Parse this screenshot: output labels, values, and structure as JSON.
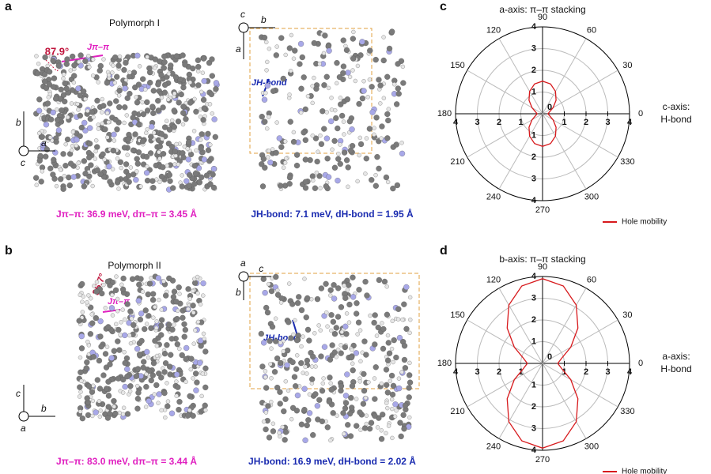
{
  "panel_labels": [
    "a",
    "b",
    "c",
    "d"
  ],
  "polymorph_1": {
    "title": "Polymorph I",
    "angle": "87.9°",
    "coupling_label": "Jπ–π",
    "axes": [
      "b",
      "a",
      "c"
    ],
    "caption": "Jπ–π: 36.9 meV, dπ–π = 3.45 Å"
  },
  "hbond_1": {
    "axes": [
      "a",
      "b",
      "c"
    ],
    "coupling_label": "JH-bond",
    "caption": "JH-bond: 7.1 meV, dH-bond = 1.95 Å"
  },
  "polymorph_2": {
    "title": "Polymorph II",
    "angle": "35.7°",
    "coupling_label": "Jπ–π",
    "axes": [
      "c",
      "b",
      "a"
    ],
    "caption": "Jπ–π: 83.0 meV, dπ–π = 3.44 Å"
  },
  "hbond_2": {
    "axes": [
      "b",
      "c",
      "a"
    ],
    "coupling_label": "JH-bond",
    "caption": "JH-bond: 16.9 meV, dH-bond = 2.02 Å"
  },
  "chart_data": [
    {
      "type": "polar",
      "title": "a-axis: π–π stacking",
      "side_label": [
        "c-axis:",
        "H-bond"
      ],
      "x": [
        0,
        15,
        30,
        45,
        60,
        75,
        90,
        105,
        120,
        135,
        150,
        165,
        180,
        195,
        210,
        225,
        240,
        255,
        270,
        285,
        300,
        315,
        330,
        345
      ],
      "series": [
        {
          "name": "Hole mobility",
          "color": "#d7191c",
          "values": [
            0.25,
            0.33,
            0.56,
            0.88,
            1.19,
            1.42,
            1.5,
            1.42,
            1.19,
            0.88,
            0.56,
            0.33,
            0.25,
            0.33,
            0.56,
            0.88,
            1.19,
            1.42,
            1.5,
            1.42,
            1.19,
            0.88,
            0.56,
            0.33
          ]
        }
      ],
      "rlim": [
        0,
        4
      ],
      "rticks": [
        0,
        1,
        2,
        3,
        4
      ],
      "thetaticks": [
        0,
        30,
        60,
        90,
        120,
        150,
        180,
        210,
        240,
        270,
        300,
        330
      ],
      "grid": true
    },
    {
      "type": "polar",
      "title": "b-axis: π–π stacking",
      "side_label": [
        "a-axis:",
        "H-bond"
      ],
      "x": [
        0,
        15,
        30,
        45,
        60,
        75,
        90,
        105,
        120,
        135,
        150,
        165,
        180,
        195,
        210,
        225,
        240,
        255,
        270,
        285,
        300,
        315,
        330,
        345
      ],
      "series": [
        {
          "name": "Hole mobility",
          "color": "#d7191c",
          "values": [
            0.7,
            0.91,
            1.5,
            2.3,
            3.1,
            3.69,
            3.9,
            3.69,
            3.1,
            2.3,
            1.5,
            0.91,
            0.7,
            0.91,
            1.5,
            2.3,
            3.1,
            3.69,
            3.9,
            3.69,
            3.1,
            2.3,
            1.5,
            0.91
          ]
        }
      ],
      "rlim": [
        0,
        4
      ],
      "rticks": [
        0,
        1,
        2,
        3,
        4
      ],
      "thetaticks": [
        0,
        30,
        60,
        90,
        120,
        150,
        180,
        210,
        240,
        270,
        300,
        330
      ],
      "grid": true
    }
  ]
}
